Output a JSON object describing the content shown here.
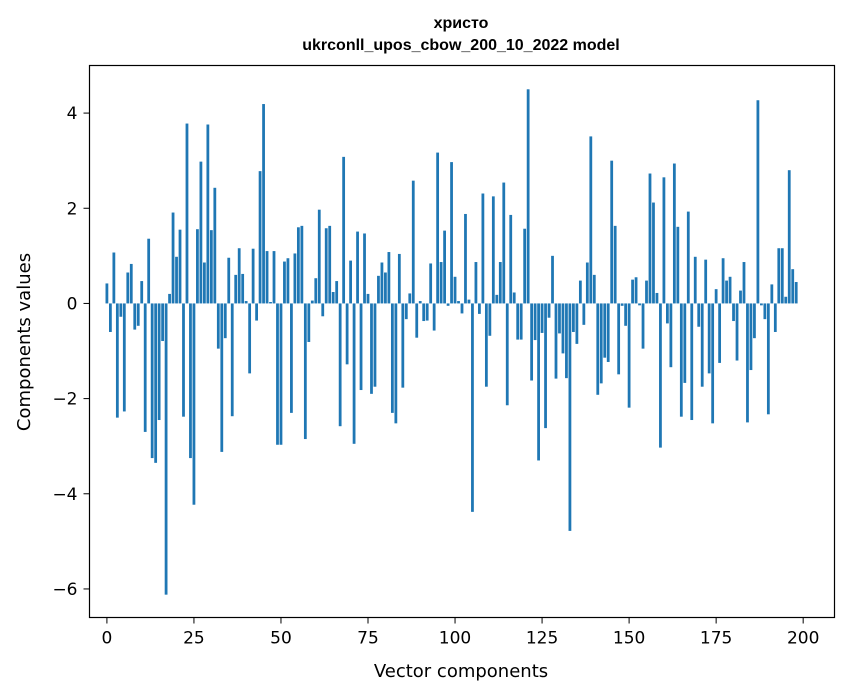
{
  "chart_data": {
    "type": "bar",
    "title_line1": "христо",
    "title_line2": "ukrconll_upos_cbow_200_10_2022 model",
    "xlabel": "Vector components",
    "ylabel": "Components values",
    "xlim": [
      -5,
      209
    ],
    "ylim": [
      -6.6,
      5.0
    ],
    "xticks": [
      0,
      25,
      50,
      75,
      100,
      125,
      150,
      175,
      200
    ],
    "xtick_labels": [
      "0",
      "25",
      "50",
      "75",
      "100",
      "125",
      "150",
      "175",
      "200"
    ],
    "yticks": [
      -6,
      -4,
      -2,
      0,
      2,
      4
    ],
    "ytick_labels": [
      "−6",
      "−4",
      "−2",
      "0",
      "2",
      "4"
    ],
    "bar_color": "#1f77b4",
    "values": [
      0.42,
      -0.6,
      1.07,
      -2.4,
      -0.28,
      -2.27,
      0.65,
      0.83,
      -0.55,
      -0.47,
      0.47,
      -2.7,
      1.36,
      -3.25,
      -3.35,
      -2.45,
      -0.79,
      -6.12,
      0.2,
      1.91,
      0.98,
      1.55,
      -2.38,
      3.78,
      -3.25,
      -4.23,
      1.56,
      2.98,
      0.86,
      3.76,
      1.54,
      2.43,
      -0.95,
      -3.12,
      -0.73,
      0.96,
      -2.37,
      0.6,
      1.16,
      0.62,
      0.05,
      -1.47,
      1.15,
      -0.36,
      2.78,
      4.19,
      1.1,
      0.03,
      1.1,
      -2.97,
      -2.97,
      0.88,
      0.95,
      -2.3,
      1.05,
      1.6,
      1.63,
      -2.85,
      -0.81,
      0.06,
      0.53,
      1.97,
      -0.27,
      1.58,
      1.63,
      0.24,
      0.47,
      -2.58,
      3.08,
      -1.28,
      0.9,
      -2.95,
      1.51,
      -1.82,
      1.47,
      0.2,
      -1.9,
      -1.75,
      0.58,
      0.86,
      0.65,
      1.08,
      -2.3,
      -2.52,
      1.04,
      -1.77,
      -0.33,
      0.21,
      2.58,
      -0.72,
      0.05,
      -0.37,
      -0.36,
      0.84,
      -0.57,
      3.17,
      0.87,
      1.53,
      -0.05,
      2.97,
      0.56,
      0.05,
      -0.21,
      1.88,
      0.08,
      -4.38,
      0.87,
      -0.22,
      2.31,
      -1.75,
      -0.68,
      2.25,
      0.18,
      0.87,
      2.54,
      -2.14,
      1.86,
      0.23,
      -0.76,
      -0.76,
      1.57,
      4.5,
      -1.62,
      -0.77,
      -3.3,
      -0.62,
      -2.62,
      -0.3,
      1.0,
      -1.58,
      -0.63,
      -1.05,
      -1.57,
      -4.78,
      -0.6,
      -0.85,
      0.48,
      -0.45,
      0.86,
      3.51,
      0.6,
      -1.92,
      -1.68,
      -1.14,
      -1.23,
      3.0,
      1.63,
      -1.49,
      -0.05,
      -0.47,
      -2.19,
      0.5,
      0.55,
      -0.04,
      -0.95,
      0.48,
      2.73,
      2.12,
      0.22,
      -3.03,
      2.65,
      -0.42,
      -1.34,
      2.94,
      1.61,
      -2.38,
      -1.67,
      1.93,
      -2.45,
      0.98,
      -0.49,
      -1.75,
      0.92,
      -1.47,
      -2.52,
      0.3,
      -1.25,
      0.95,
      0.48,
      0.56,
      -0.37,
      -1.2,
      0.27,
      0.87,
      -2.5,
      -1.4,
      -0.73,
      4.27,
      -0.04,
      -0.33,
      -2.33,
      0.4,
      -0.6,
      1.16,
      1.16,
      0.14,
      2.8,
      0.72,
      0.45
    ]
  }
}
